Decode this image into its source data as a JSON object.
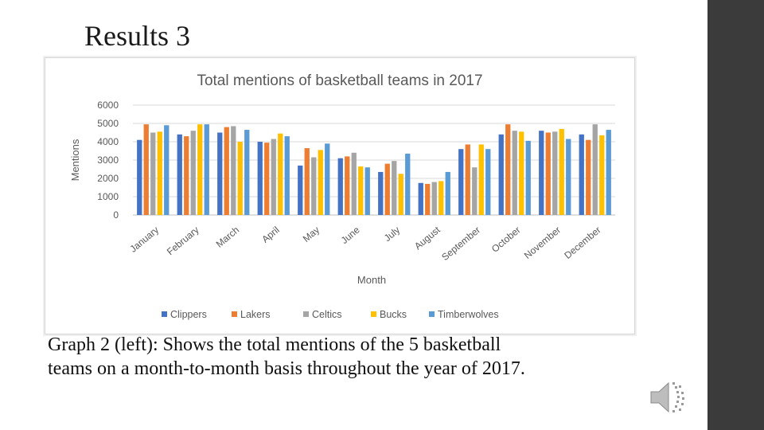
{
  "slide": {
    "title": "Results 3",
    "caption_line1": "Graph 2 (left): Shows the total mentions of the 5 basketball",
    "caption_line2": "teams on a month-to-month basis throughout the year of 2017."
  },
  "colors": {
    "sidebar": "#3b3b3b"
  },
  "icons": {
    "audio": "speaker-icon"
  },
  "chart_data": {
    "type": "bar",
    "title": "Total mentions of basketball teams in 2017",
    "xlabel": "Month",
    "ylabel": "Mentions",
    "ylim": [
      0,
      6000
    ],
    "yticks": [
      0,
      1000,
      2000,
      3000,
      4000,
      5000,
      6000
    ],
    "grid": true,
    "legend_position": "bottom",
    "categories": [
      "January",
      "February",
      "March",
      "April",
      "May",
      "June",
      "July",
      "August",
      "September",
      "October",
      "November",
      "December"
    ],
    "series": [
      {
        "name": "Clippers",
        "color": "#4472c4",
        "values": [
          4100,
          4400,
          4500,
          4000,
          2700,
          3100,
          2350,
          1750,
          3600,
          4400,
          4600,
          4400
        ]
      },
      {
        "name": "Lakers",
        "color": "#ed7d31",
        "values": [
          4950,
          4300,
          4800,
          3950,
          3650,
          3200,
          2800,
          1700,
          3850,
          4950,
          4500,
          4100
        ]
      },
      {
        "name": "Celtics",
        "color": "#a5a5a5",
        "values": [
          4500,
          4600,
          4850,
          4150,
          3150,
          3400,
          2950,
          1800,
          2600,
          4600,
          4550,
          4950
        ]
      },
      {
        "name": "Bucks",
        "color": "#ffc000",
        "values": [
          4550,
          4950,
          4000,
          4450,
          3550,
          2650,
          2250,
          1850,
          3850,
          4550,
          4700,
          4350
        ]
      },
      {
        "name": "Timberwolves",
        "color": "#5b9bd5",
        "values": [
          4900,
          4950,
          4650,
          4300,
          3900,
          2600,
          3350,
          2350,
          3600,
          4050,
          4150,
          4650
        ]
      }
    ]
  }
}
